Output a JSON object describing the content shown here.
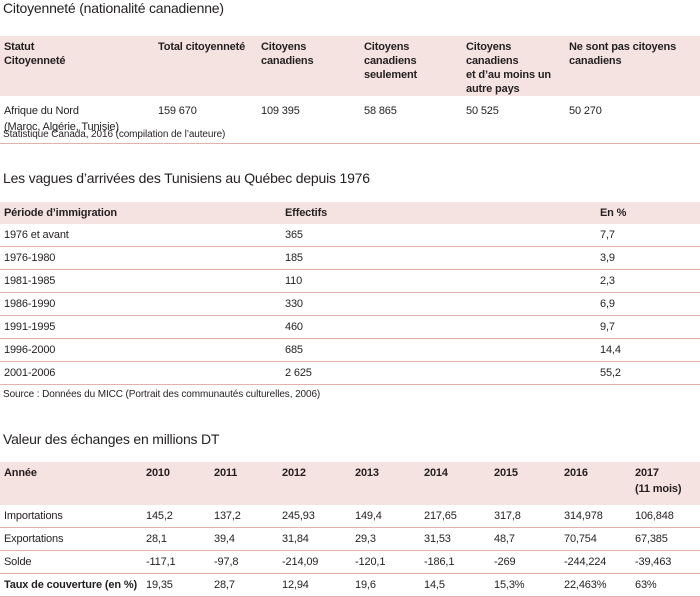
{
  "citizenship": {
    "title": "Citoyenneté (nationalité canadienne)",
    "headers": [
      [
        "Statut",
        "Citoyenneté"
      ],
      [
        "Total citoyenneté"
      ],
      [
        "Citoyens canadiens"
      ],
      [
        "Citoyens canadiens",
        "seulement"
      ],
      [
        "Citoyens canadiens",
        "et d’au moins un",
        "autre pays"
      ],
      [
        "Ne sont pas citoyens",
        "canadiens"
      ]
    ],
    "row": {
      "label_line1": "Afrique du Nord",
      "label_line2": "(Maroc, Algérie, Tunisie)",
      "values": [
        "159 670",
        "109 395",
        "58 865",
        "50 525",
        "50 270"
      ]
    },
    "source": "Statistique Canada, 2016 (compilation de l’auteure)"
  },
  "waves": {
    "title": "Les vagues d’arrivées des Tunisiens au Québec depuis 1976",
    "headers": [
      "Période d’immigration",
      "Effectifs",
      "En %"
    ],
    "rows": [
      [
        "1976 et avant",
        "365",
        "7,7"
      ],
      [
        "1976-1980",
        "185",
        "3,9"
      ],
      [
        "1981-1985",
        "110",
        "2,3"
      ],
      [
        "1986-1990",
        "330",
        "6,9"
      ],
      [
        "1991-1995",
        "460",
        "9,7"
      ],
      [
        "1996-2000",
        "685",
        "14,4"
      ],
      [
        "2001-2006",
        "2 625",
        "55,2"
      ]
    ],
    "source": "Source : Données du MICC (Portrait des communautés culturelles, 2006)"
  },
  "trade": {
    "title": "Valeur des échanges en millions DT",
    "headers": [
      "Année",
      "2010",
      "2011",
      "2012",
      "2013",
      "2014",
      "2015",
      "2016",
      "2017"
    ],
    "header_note": "(11 mois)",
    "rows": [
      [
        "Importations",
        "145,2",
        "137,2",
        "245,93",
        "149,4",
        "217,65",
        "317,8",
        "314,978",
        "106,848"
      ],
      [
        "Exportations",
        "28,1",
        "39,4",
        "31,84",
        "29,3",
        "31,53",
        "48,7",
        "70,754",
        "67,385"
      ],
      [
        "Solde",
        "-117,1",
        "-97,8",
        "-214,09",
        "-120,1",
        "-186,1",
        "-269",
        "-244,224",
        "-39,463"
      ],
      [
        "Taux de couverture (en %)",
        "19,35",
        "28,7",
        "12,94",
        "19,6",
        "14,5",
        "15,3%",
        "22,463%",
        "63%"
      ]
    ]
  }
}
